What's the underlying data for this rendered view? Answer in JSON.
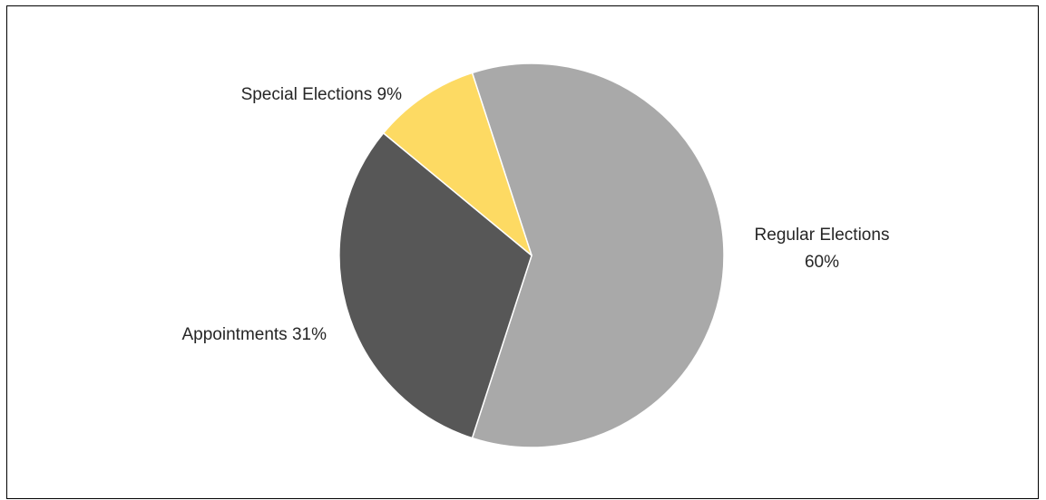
{
  "chart_data": {
    "type": "pie",
    "title": "",
    "start_angle_deg": -18,
    "direction": "clockwise",
    "slice_border_color": "#ffffff",
    "slices": [
      {
        "name": "Regular Elections",
        "value": 60,
        "label_lines": [
          "Regular Elections",
          "60%"
        ],
        "label_anchor": "middle",
        "color": "#a9a9a9"
      },
      {
        "name": "Appointments",
        "value": 31,
        "label_lines": [
          "Appointments 31%"
        ],
        "label_anchor": "end",
        "color": "#575757"
      },
      {
        "name": "Special Elections",
        "value": 9,
        "label_lines": [
          "Special Elections 9%"
        ],
        "label_anchor": "end",
        "color": "#fdda63"
      }
    ]
  }
}
